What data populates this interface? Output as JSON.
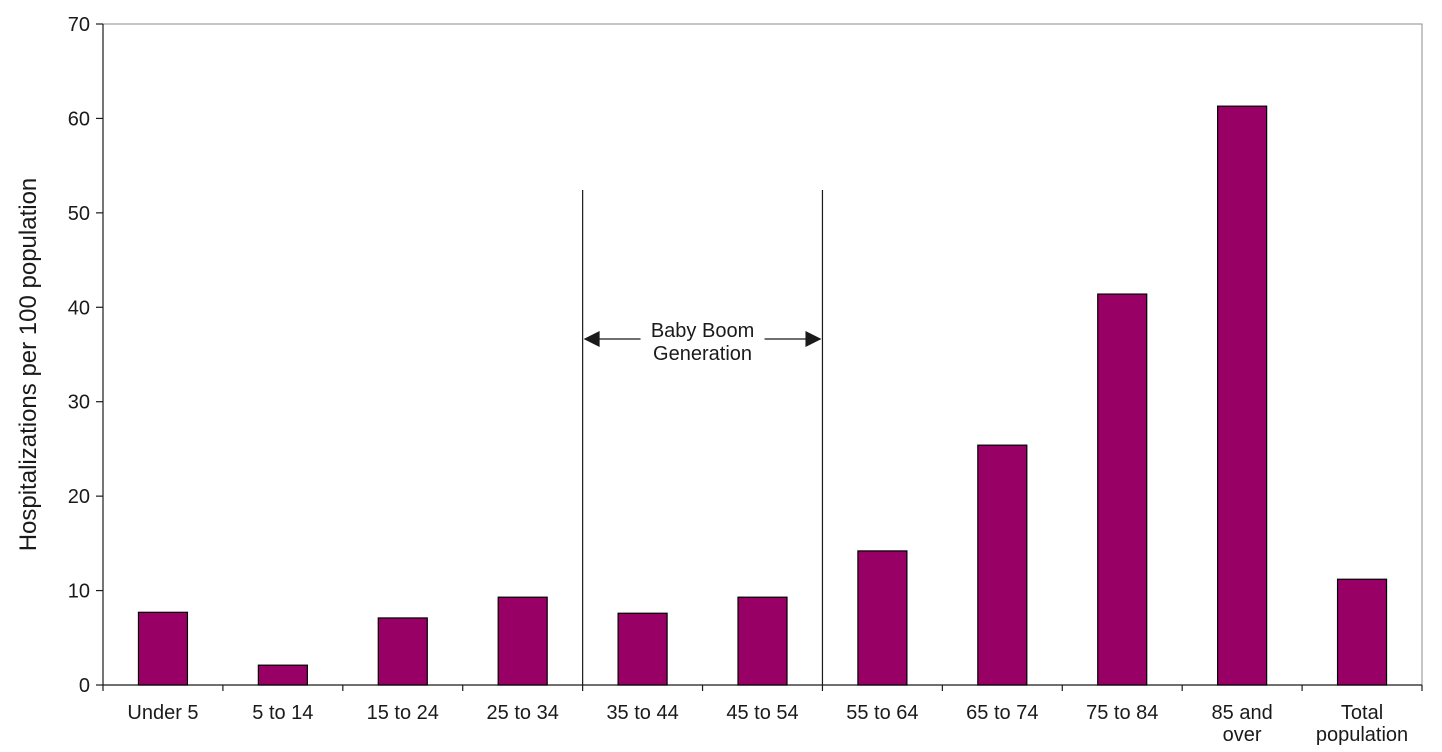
{
  "chart_data": {
    "type": "bar",
    "title": "",
    "xlabel": "",
    "ylabel": "Hospitalizations per 100 population",
    "ylim": [
      0,
      70
    ],
    "yticks": [
      0,
      10,
      20,
      30,
      40,
      50,
      60,
      70
    ],
    "categories": [
      [
        "Under 5"
      ],
      [
        "5 to 14"
      ],
      [
        "15 to 24"
      ],
      [
        "25 to 34"
      ],
      [
        "35 to 44"
      ],
      [
        "45 to 54"
      ],
      [
        "55 to 64"
      ],
      [
        "65 to 74"
      ],
      [
        "75 to 84"
      ],
      [
        "85 and",
        "over"
      ],
      [
        "Total",
        "population"
      ]
    ],
    "values": [
      7.7,
      2.1,
      7.1,
      9.3,
      7.6,
      9.3,
      14.2,
      25.4,
      41.4,
      61.3,
      11.2
    ],
    "bar_color": "#990066",
    "grid": false,
    "annotation": {
      "lines": [
        "Baby Boom",
        "Generation"
      ],
      "span": [
        "35 to 44",
        "45 to 54"
      ]
    }
  }
}
